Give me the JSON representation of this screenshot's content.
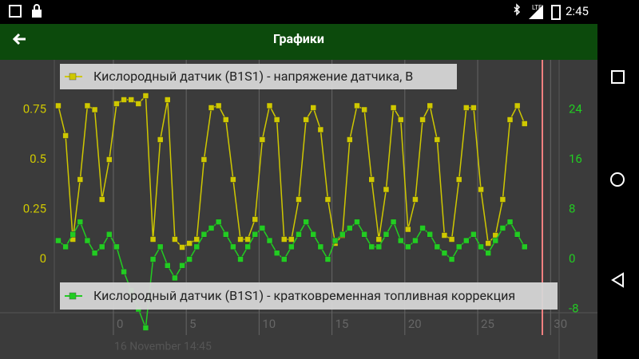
{
  "status_bar": {
    "time": "2:45",
    "network": "LTE"
  },
  "app_bar": {
    "title": "Графики"
  },
  "chart_data": {
    "type": "line",
    "xlabel": "16 November 14:45",
    "x": [
      -4,
      -3.5,
      -3,
      -2.5,
      -2,
      -1.5,
      -1,
      -0.5,
      0,
      0.5,
      1,
      1.5,
      2,
      2.5,
      3,
      3.5,
      4,
      4.5,
      5,
      5.5,
      6,
      6.5,
      7,
      7.5,
      8,
      8.5,
      9,
      9.5,
      10,
      10.5,
      11,
      11.5,
      12,
      12.5,
      13,
      13.5,
      14,
      14.5,
      15,
      15.5,
      16,
      16.5,
      17,
      17.5,
      18,
      18.5,
      19,
      19.5,
      20,
      20.5,
      21,
      21.5,
      22,
      22.5,
      23,
      23.5,
      24,
      24.5,
      25,
      25.5,
      26,
      26.5,
      27,
      27.5,
      28
    ],
    "series": [
      {
        "name": "Кислородный датчик (B1S1) - напряжение датчика, В",
        "color": "#cfc800",
        "axis": "y",
        "values": [
          0.77,
          0.62,
          0.1,
          0.4,
          0.77,
          0.75,
          0.3,
          0.5,
          0.78,
          0.8,
          0.8,
          0.78,
          0.82,
          0.1,
          0.6,
          0.8,
          0.1,
          0.06,
          0.08,
          0.1,
          0.5,
          0.76,
          0.77,
          0.7,
          0.4,
          0.1,
          0.1,
          0.2,
          0.6,
          0.77,
          0.7,
          0.1,
          0.1,
          0.3,
          0.7,
          0.76,
          0.65,
          0.3,
          0.08,
          0.12,
          0.6,
          0.77,
          0.75,
          0.4,
          0.1,
          0.35,
          0.76,
          0.7,
          0.15,
          0.3,
          0.7,
          0.77,
          0.6,
          0.12,
          0.1,
          0.4,
          0.76,
          0.76,
          0.35,
          0.08,
          0.12,
          0.3,
          0.7,
          0.77,
          0.68
        ]
      },
      {
        "name": "Кислородный датчик (B1S1) - кратковременная топливная коррекция",
        "color": "#22cc22",
        "axis": "y2",
        "values": [
          3,
          2,
          4,
          6,
          3,
          1,
          2,
          4,
          2,
          -2,
          -5,
          -8,
          -11,
          0,
          2,
          -1,
          -3,
          -1,
          0,
          2,
          4,
          5,
          6,
          4,
          2,
          0,
          2,
          4,
          5,
          3,
          1,
          0,
          2,
          4,
          6,
          4,
          2,
          0,
          3,
          4,
          5,
          6,
          4,
          2,
          2,
          4,
          6,
          3,
          2,
          3,
          5,
          4,
          2,
          1,
          0,
          2,
          3,
          4,
          2,
          1,
          3,
          5,
          6,
          4,
          2
        ]
      }
    ],
    "xlim": [
      -8,
      33
    ],
    "xticks": [
      0,
      5,
      10,
      15,
      20,
      25,
      30
    ],
    "ylim": [
      -0.5,
      1
    ],
    "yticks": [
      0,
      0.25,
      0.5,
      0.75
    ],
    "y2lim": [
      -16,
      32
    ],
    "y2ticks": [
      -8,
      0,
      8,
      16,
      24
    ],
    "grid": true
  }
}
